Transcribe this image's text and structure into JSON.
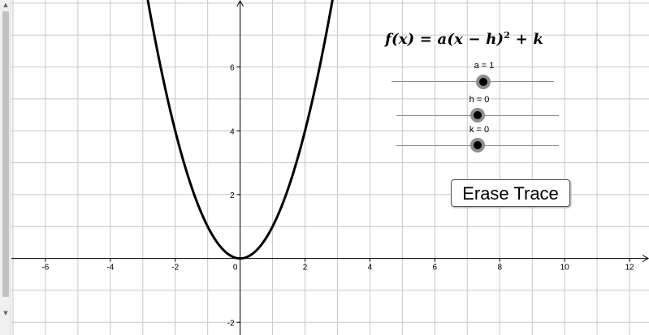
{
  "graph": {
    "x_range": [
      -7.4,
      12.6
    ],
    "y_range": [
      -2.4,
      8.1
    ],
    "grid": true,
    "x_tick_labels": [
      "-6",
      "-4",
      "-2",
      "0",
      "2",
      "4",
      "6",
      "8",
      "10",
      "12"
    ],
    "y_tick_labels": [
      "-2",
      "2",
      "4",
      "6"
    ],
    "x_tick_values": [
      -6,
      -4,
      -2,
      0,
      2,
      4,
      6,
      8,
      10,
      12
    ],
    "y_tick_values": [
      -2,
      2,
      4,
      6
    ],
    "curve": {
      "expression": "f(x) = a(x - h)^2 + k",
      "a": 1,
      "h": 0,
      "k": 0,
      "color": "#000000"
    }
  },
  "formula": {
    "lhs": "f(x) = a(x − h)",
    "exponent": "2",
    "rhs": " + k"
  },
  "sliders": [
    {
      "name": "a",
      "label": "a = 1",
      "value": 1
    },
    {
      "name": "h",
      "label": "h = 0",
      "value": 0
    },
    {
      "name": "k",
      "label": "k = 0",
      "value": 0
    }
  ],
  "erase_button": {
    "label": "Erase Trace"
  },
  "scrollbar": {
    "up_arrow": "▲",
    "down_arrow": "▼"
  },
  "colors": {
    "grid": "#c8c8c8",
    "axis": "#000000",
    "slider_knob_ring": "#8e8e8e"
  }
}
